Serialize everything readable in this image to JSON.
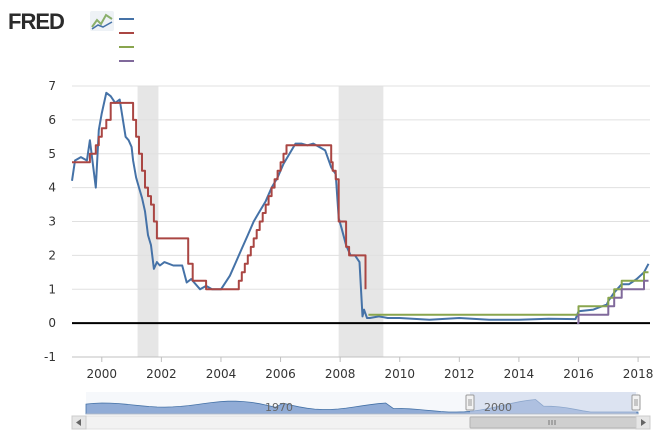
{
  "header": {
    "logo_text": "FRED",
    "logo_icon": "line-chart-icon"
  },
  "colors": {
    "series": [
      "#4572a7",
      "#aa4643",
      "#89a54e",
      "#80699b"
    ],
    "recession": "#e6e6e6",
    "zero_line": "#000000",
    "grid": "#e0e0e0",
    "navigator_fill": "#6f93c9",
    "navigator_mask": "#c6d2e9"
  },
  "chart_data": {
    "type": "line",
    "title": "",
    "xlabel": "",
    "ylabel": "",
    "xlim": [
      1999.0,
      2018.4
    ],
    "ylim": [
      -1,
      7
    ],
    "x_ticks": [
      2000,
      2002,
      2004,
      2006,
      2008,
      2010,
      2012,
      2014,
      2016,
      2018
    ],
    "x_tick_labels": [
      "2000",
      "2002",
      "2004",
      "2006",
      "2008",
      "2010",
      "2012",
      "2014",
      "2016",
      "2018"
    ],
    "y_ticks": [
      -1,
      0,
      1,
      2,
      3,
      4,
      5,
      6,
      7
    ],
    "y_tick_labels": [
      "-1",
      "0",
      "1",
      "2",
      "3",
      "4",
      "5",
      "6",
      "7"
    ],
    "grid": true,
    "legend": "top-left",
    "recessions": [
      [
        2001.2,
        2001.9
      ],
      [
        2007.95,
        2009.45
      ]
    ],
    "series": [
      {
        "name": "",
        "x": [
          1999.0,
          1999.1,
          1999.3,
          1999.5,
          1999.6,
          1999.8,
          1999.9,
          2000.0,
          2000.15,
          2000.3,
          2000.45,
          2000.6,
          2000.8,
          2000.9,
          2001.0,
          2001.05,
          2001.15,
          2001.25,
          2001.35,
          2001.45,
          2001.55,
          2001.65,
          2001.75,
          2001.85,
          2001.95,
          2002.1,
          2002.4,
          2002.7,
          2002.85,
          2003.0,
          2003.3,
          2003.5,
          2003.7,
          2004.0,
          2004.3,
          2004.5,
          2004.7,
          2004.9,
          2005.1,
          2005.3,
          2005.5,
          2005.7,
          2005.9,
          2006.1,
          2006.3,
          2006.5,
          2006.7,
          2006.9,
          2007.1,
          2007.3,
          2007.5,
          2007.7,
          2007.85,
          2007.95,
          2008.05,
          2008.2,
          2008.35,
          2008.5,
          2008.65,
          2008.75,
          2008.8,
          2008.9,
          2009.0,
          2009.3,
          2009.6,
          2010.0,
          2011.0,
          2012.0,
          2013.0,
          2014.0,
          2015.0,
          2015.9,
          2016.0,
          2016.5,
          2016.95,
          2017.0,
          2017.2,
          2017.45,
          2017.7,
          2017.95,
          2018.2,
          2018.35
        ],
        "values": [
          4.2,
          4.8,
          4.9,
          4.8,
          5.4,
          4.0,
          5.7,
          6.2,
          6.8,
          6.7,
          6.5,
          6.6,
          5.5,
          5.4,
          5.2,
          4.8,
          4.3,
          4.0,
          3.7,
          3.3,
          2.6,
          2.3,
          1.6,
          1.8,
          1.7,
          1.8,
          1.7,
          1.7,
          1.2,
          1.3,
          1.0,
          1.1,
          1.0,
          1.0,
          1.4,
          1.8,
          2.2,
          2.6,
          3.0,
          3.3,
          3.6,
          4.0,
          4.3,
          4.7,
          5.0,
          5.3,
          5.3,
          5.25,
          5.3,
          5.2,
          5.1,
          4.6,
          4.4,
          3.1,
          2.8,
          2.3,
          2.0,
          2.0,
          1.8,
          0.2,
          0.4,
          0.15,
          0.15,
          0.2,
          0.15,
          0.15,
          0.1,
          0.15,
          0.1,
          0.1,
          0.13,
          0.12,
          0.35,
          0.4,
          0.55,
          0.65,
          0.9,
          1.15,
          1.15,
          1.3,
          1.5,
          1.75
        ]
      },
      {
        "name": "",
        "x": [
          1999.0,
          1999.5,
          1999.6,
          1999.8,
          1999.9,
          2000.0,
          2000.15,
          2000.3,
          2000.45,
          2001.0,
          2001.05,
          2001.15,
          2001.25,
          2001.35,
          2001.45,
          2001.55,
          2001.65,
          2001.75,
          2001.85,
          2002.9,
          2003.05,
          2003.5,
          2004.5,
          2004.6,
          2004.7,
          2004.8,
          2004.9,
          2005.0,
          2005.1,
          2005.2,
          2005.3,
          2005.4,
          2005.5,
          2005.6,
          2005.7,
          2005.8,
          2005.9,
          2006.0,
          2006.1,
          2006.2,
          2006.35,
          2006.5,
          2007.7,
          2007.75,
          2007.85,
          2007.95,
          2008.05,
          2008.2,
          2008.3,
          2008.45,
          2008.75,
          2008.85
        ],
        "values": [
          4.75,
          4.75,
          5.0,
          5.25,
          5.5,
          5.75,
          6.0,
          6.5,
          6.5,
          6.5,
          6.0,
          5.5,
          5.0,
          4.5,
          4.0,
          3.75,
          3.5,
          3.0,
          2.5,
          1.75,
          1.25,
          1.0,
          1.0,
          1.25,
          1.5,
          1.75,
          2.0,
          2.25,
          2.5,
          2.75,
          3.0,
          3.25,
          3.5,
          3.75,
          4.0,
          4.25,
          4.5,
          4.75,
          5.0,
          5.25,
          5.25,
          5.25,
          4.75,
          4.5,
          4.25,
          3.0,
          3.0,
          2.25,
          2.0,
          2.0,
          2.0,
          1.0
        ]
      },
      {
        "name": "",
        "x": [
          2008.95,
          2015.95,
          2016.0,
          2016.95,
          2017.0,
          2017.2,
          2017.45,
          2017.95,
          2018.2,
          2018.35
        ],
        "values": [
          0.25,
          0.25,
          0.5,
          0.5,
          0.75,
          1.0,
          1.25,
          1.25,
          1.5,
          1.5
        ]
      },
      {
        "name": "",
        "x": [
          2015.95,
          2016.0,
          2016.95,
          2017.0,
          2017.2,
          2017.45,
          2017.95,
          2018.2,
          2018.35
        ],
        "values": [
          0.0,
          0.25,
          0.25,
          0.5,
          0.75,
          1.0,
          1.0,
          1.25,
          1.25
        ]
      }
    ],
    "navigator": {
      "labels": [
        "1970",
        "2000"
      ]
    }
  }
}
